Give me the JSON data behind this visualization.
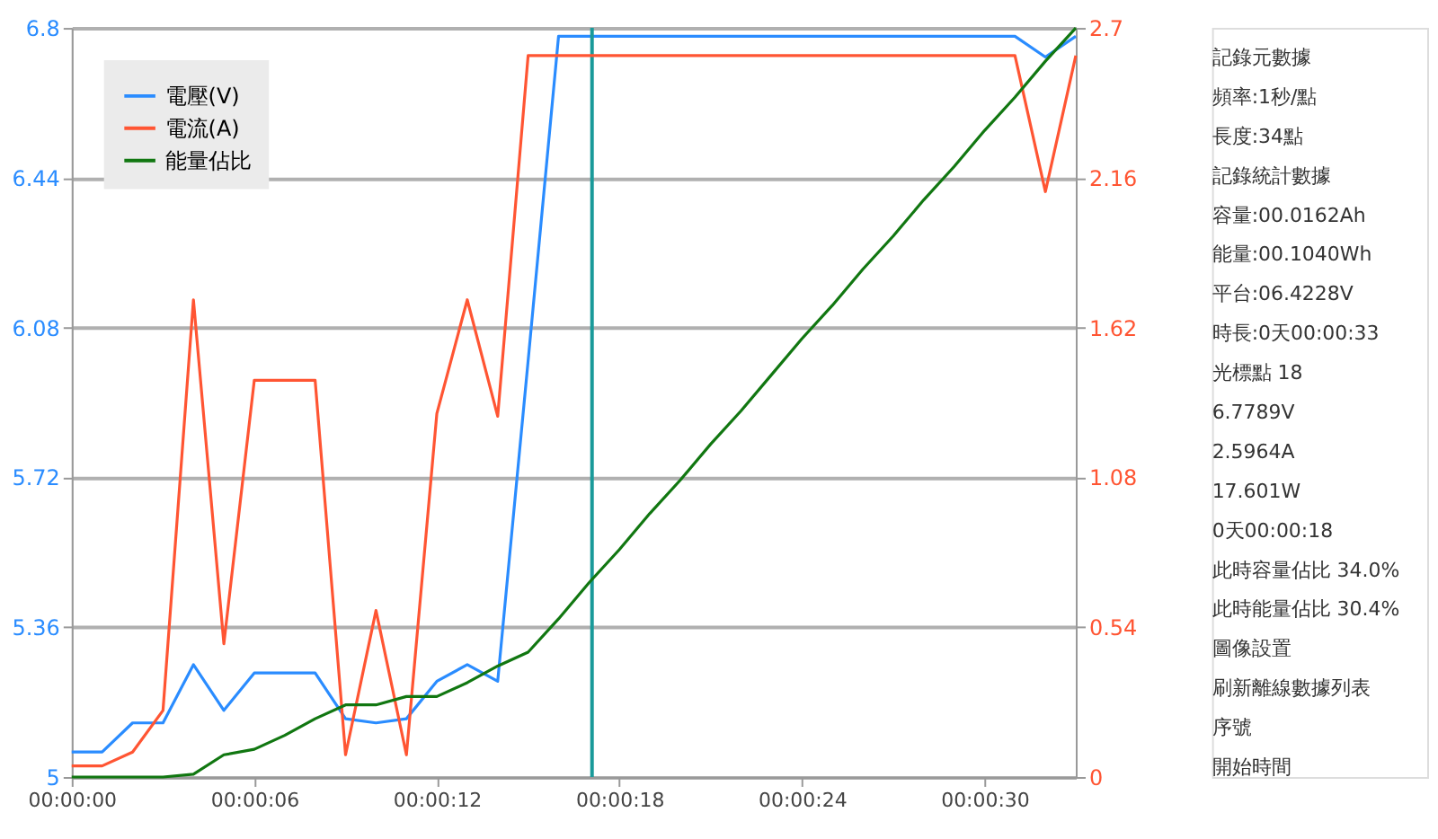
{
  "chart_data": {
    "type": "line",
    "x": [
      0,
      1,
      2,
      3,
      4,
      5,
      6,
      7,
      8,
      9,
      10,
      11,
      12,
      13,
      14,
      15,
      16,
      17,
      18,
      19,
      20,
      21,
      22,
      23,
      24,
      25,
      26,
      27,
      28,
      29,
      30,
      31,
      32,
      33
    ],
    "series": [
      {
        "name": "電壓(V)",
        "color": "#2a8cff",
        "axis": "y",
        "values": [
          5.06,
          5.06,
          5.13,
          5.13,
          5.27,
          5.16,
          5.25,
          5.25,
          5.25,
          5.14,
          5.13,
          5.14,
          5.23,
          5.27,
          5.23,
          6.0,
          6.78,
          6.78,
          6.78,
          6.78,
          6.78,
          6.78,
          6.78,
          6.78,
          6.78,
          6.78,
          6.78,
          6.78,
          6.78,
          6.78,
          6.78,
          6.78,
          6.73,
          6.78
        ]
      },
      {
        "name": "電流(A)",
        "color": "#ff5533",
        "axis": "y2",
        "values": [
          0.04,
          0.04,
          0.09,
          0.24,
          1.72,
          0.48,
          1.43,
          1.43,
          1.43,
          0.08,
          0.6,
          0.08,
          1.31,
          1.72,
          1.3,
          2.6,
          2.6,
          2.6,
          2.6,
          2.6,
          2.6,
          2.6,
          2.6,
          2.6,
          2.6,
          2.6,
          2.6,
          2.6,
          2.6,
          2.6,
          2.6,
          2.6,
          2.11,
          2.6
        ]
      },
      {
        "name": "能量佔比",
        "color": "#117711",
        "axis": "y2",
        "values": [
          0,
          0,
          0,
          0,
          0.01,
          0.08,
          0.1,
          0.15,
          0.21,
          0.26,
          0.26,
          0.29,
          0.29,
          0.34,
          0.4,
          0.45,
          0.57,
          0.7,
          0.82,
          0.95,
          1.07,
          1.2,
          1.32,
          1.45,
          1.58,
          1.7,
          1.83,
          1.95,
          2.08,
          2.2,
          2.33,
          2.45,
          2.58,
          2.7
        ]
      }
    ],
    "xlim": [
      0,
      33
    ],
    "xticks": [
      {
        "value": 0,
        "label": "00:00:00"
      },
      {
        "value": 6,
        "label": "00:00:06"
      },
      {
        "value": 12,
        "label": "00:00:12"
      },
      {
        "value": 18,
        "label": "00:00:18"
      },
      {
        "value": 24,
        "label": "00:00:24"
      },
      {
        "value": 30,
        "label": "00:00:30"
      }
    ],
    "ylim": [
      5,
      6.8
    ],
    "yticks": [
      5,
      5.36,
      5.72,
      6.08,
      6.44,
      6.8
    ],
    "y2lim": [
      0,
      2.7
    ],
    "y2ticks": [
      0,
      0.54,
      1.08,
      1.62,
      2.16,
      2.7
    ],
    "grid": "y",
    "legend": "top left",
    "marker": "none",
    "line_style": "solid",
    "ref_lines": [
      {
        "axis": "x",
        "value": 17.1,
        "color": "#1a9a9a"
      }
    ],
    "annotations": [
      "記錄元數據",
      "頻率:1秒/點",
      "長度:34點",
      "記錄統計數據",
      "容量:00.0162Ah",
      "能量:00.1040Wh",
      "平台:06.4228V",
      "時長:0天00:00:33",
      "光標點 18",
      "6.7789V",
      "2.5964A",
      "17.601W",
      "0天00:00:18",
      "此時容量佔比 34.0%",
      "此時能量佔比 30.4%",
      "圖像設置",
      "刷新離線數據列表",
      "序號",
      "開始時間"
    ]
  }
}
